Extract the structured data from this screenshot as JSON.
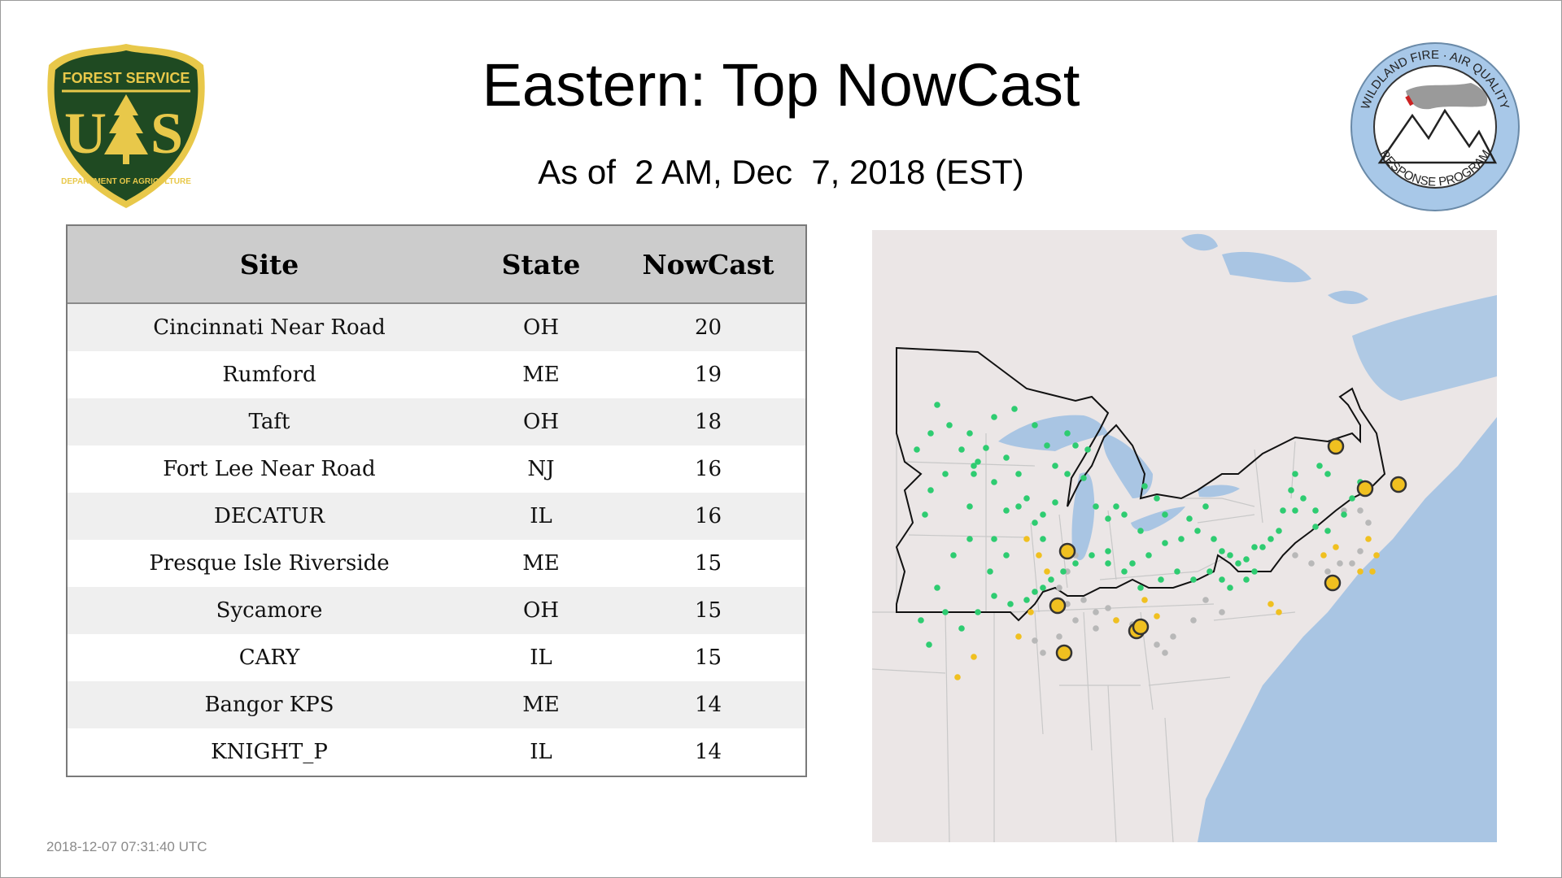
{
  "title": "Eastern: Top NowCast",
  "subtitle": "As of  2 AM, Dec  7, 2018 (EST)",
  "logos": {
    "forest_service": {
      "top_text": "FOREST SERVICE",
      "letters_left": "U",
      "letters_right": "S",
      "bottom_text": "DEPARTMENT OF AGRICULTURE",
      "color_dark": "#1f4a22",
      "color_gold": "#e8c84a"
    },
    "wildland_fire": {
      "top_text": "WILDLAND FIRE · AIR QUALITY",
      "bottom_text": "RESPONSE PROGRAM",
      "ring_color": "#a8c8e8"
    }
  },
  "table": {
    "headers": {
      "site": "Site",
      "state": "State",
      "nowcast": "NowCast"
    },
    "rows": [
      {
        "site": "Cincinnati Near Road",
        "state": "OH",
        "nowcast": "20"
      },
      {
        "site": "Rumford",
        "state": "ME",
        "nowcast": "19"
      },
      {
        "site": "Taft",
        "state": "OH",
        "nowcast": "18"
      },
      {
        "site": "Fort Lee Near Road",
        "state": "NJ",
        "nowcast": "16"
      },
      {
        "site": "DECATUR",
        "state": "IL",
        "nowcast": "16"
      },
      {
        "site": "Presque Isle Riverside",
        "state": "ME",
        "nowcast": "15"
      },
      {
        "site": "Sycamore",
        "state": "OH",
        "nowcast": "15"
      },
      {
        "site": "CARY",
        "state": "IL",
        "nowcast": "15"
      },
      {
        "site": "Bangor KPS",
        "state": "ME",
        "nowcast": "14"
      },
      {
        "site": "KNIGHT_P",
        "state": "IL",
        "nowcast": "14"
      }
    ]
  },
  "map": {
    "colors": {
      "land": "#ebe6e6",
      "water": "#a9c5e3",
      "border": "#c8c8c8",
      "outline": "#111111",
      "good": "#2ecc71",
      "moderate": "#f0c020",
      "nodata": "#b8b8b8",
      "highlight_fill": "#f0c020",
      "highlight_stroke": "#333333"
    }
  },
  "timestamp": "2018-12-07 07:31:40 UTC"
}
